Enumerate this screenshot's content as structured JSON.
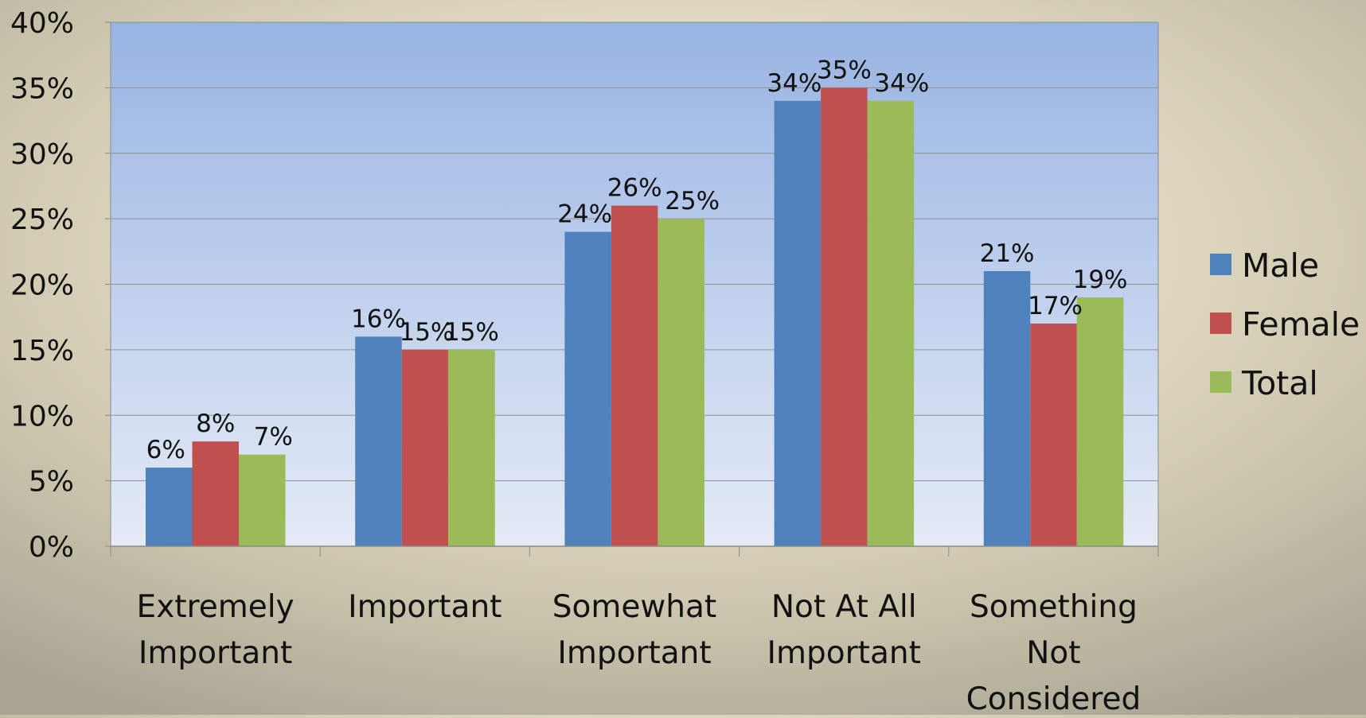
{
  "chart_data": {
    "type": "bar",
    "title": "",
    "xlabel": "",
    "ylabel": "",
    "ylim": [
      0,
      40
    ],
    "ytick_step": 5,
    "ytick_labels": [
      "0%",
      "5%",
      "10%",
      "15%",
      "20%",
      "25%",
      "30%",
      "35%",
      "40%"
    ],
    "categories": [
      [
        "Extremely",
        "Important"
      ],
      [
        "Important"
      ],
      [
        "Somewhat",
        "Important"
      ],
      [
        "Not At All",
        "Important"
      ],
      [
        "Something",
        "Not",
        "Considered"
      ]
    ],
    "series": [
      {
        "name": "Male",
        "color": "#4f81bd",
        "values": [
          6,
          16,
          24,
          34,
          21
        ],
        "labels": [
          "6%",
          "16%",
          "24%",
          "34%",
          "21%"
        ]
      },
      {
        "name": "Female",
        "color": "#c0504d",
        "values": [
          8,
          15,
          26,
          35,
          17
        ],
        "labels": [
          "8%",
          "15%",
          "26%",
          "35%",
          "17%"
        ]
      },
      {
        "name": "Total",
        "color": "#9bbb59",
        "values": [
          7,
          15,
          25,
          34,
          19
        ],
        "labels": [
          "7%",
          "15%",
          "25%",
          "34%",
          "19%"
        ]
      }
    ],
    "grid": true,
    "legend": "right",
    "plot_background": "#a4bde6"
  }
}
